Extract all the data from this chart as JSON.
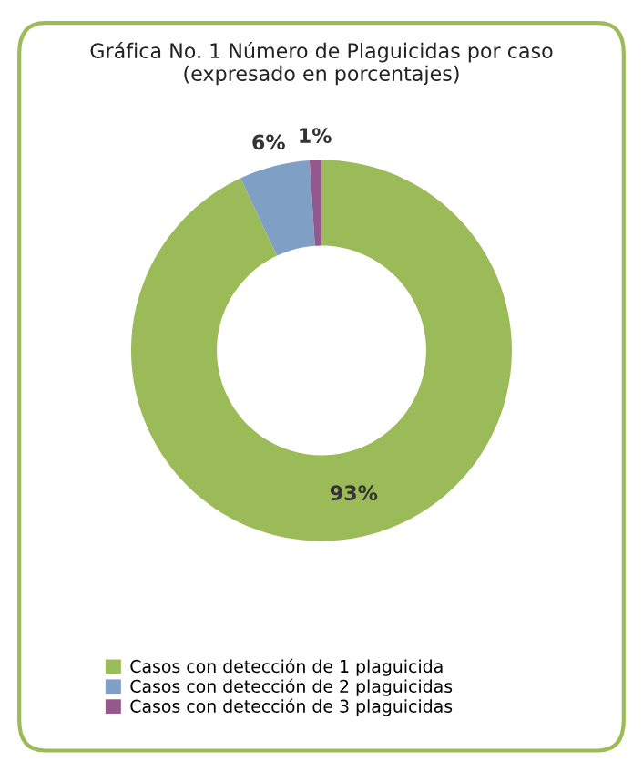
{
  "chart_data": {
    "type": "donut",
    "title": "Gráfica No. 1 Número de Plaguicidas por caso\n(expresado en porcentajes)",
    "categories": [
      "Casos con detección de 1 plaguicida",
      "Casos con detección de 2 plaguicidas",
      "Casos con detección de 3 plaguicidas"
    ],
    "values": [
      93,
      6,
      1
    ],
    "colors": [
      "#9bbb59",
      "#7f9fc5",
      "#93598c"
    ],
    "value_labels": [
      "93%",
      "6%",
      "1%"
    ],
    "legend": "bottom"
  }
}
